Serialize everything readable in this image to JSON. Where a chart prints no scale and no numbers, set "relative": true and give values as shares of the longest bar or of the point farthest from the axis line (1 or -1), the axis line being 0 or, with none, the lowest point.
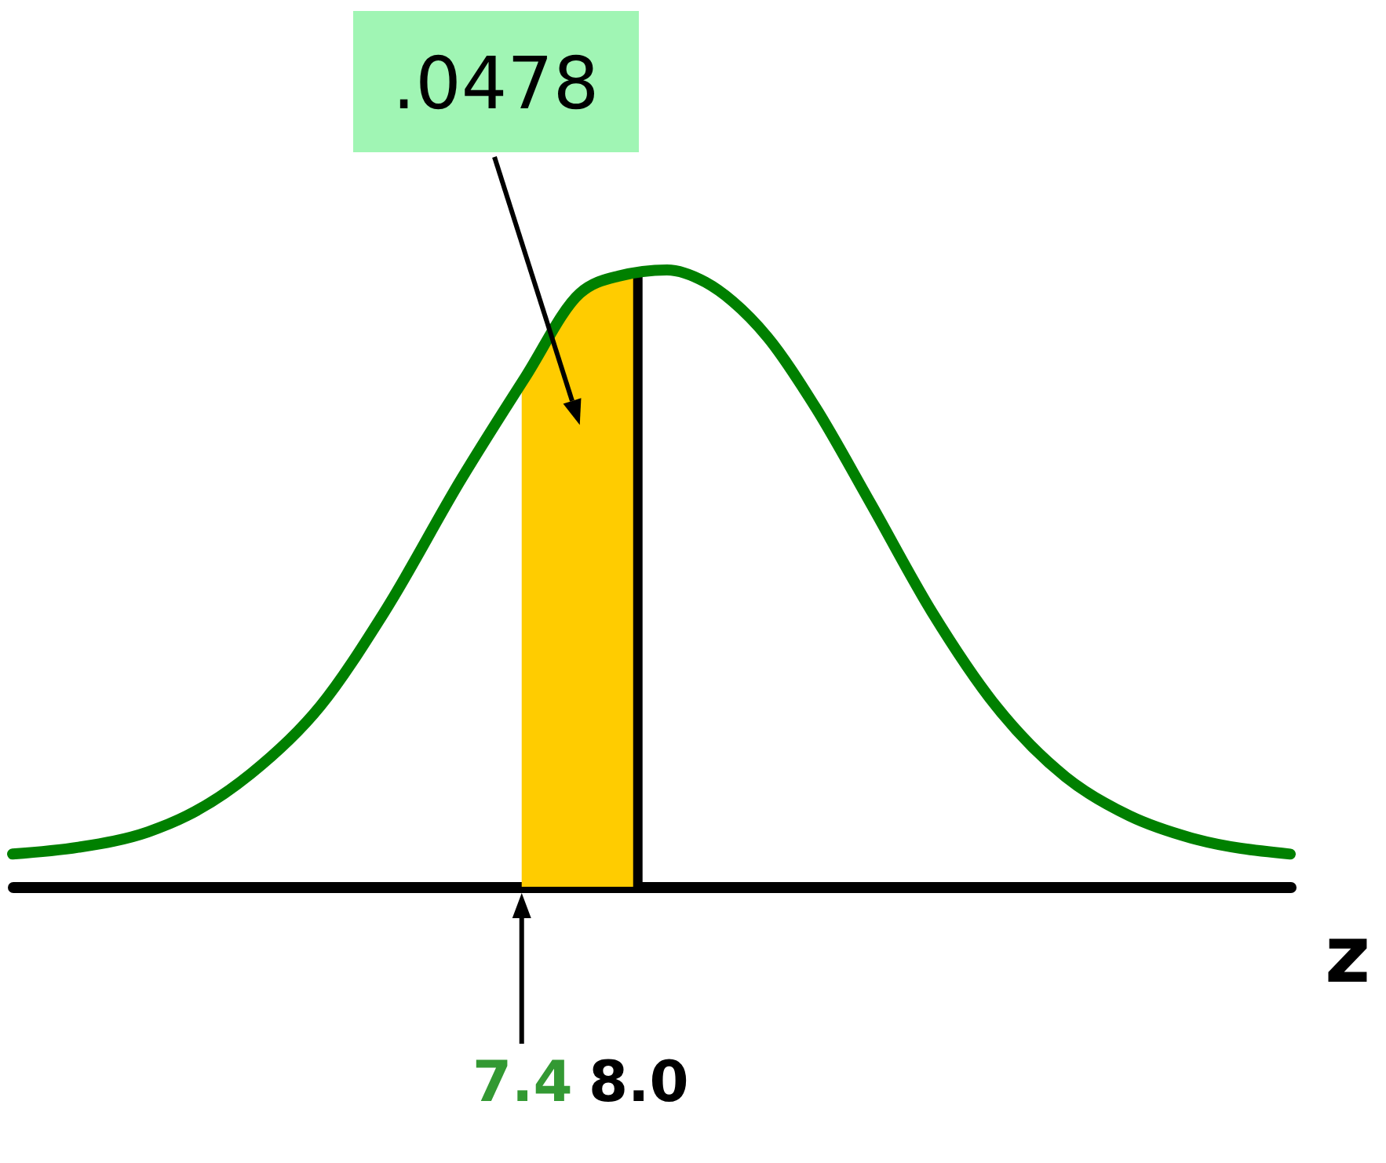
{
  "chart_data": {
    "type": "line",
    "relative": true,
    "xlabel": "z",
    "xlim": [
      4.77,
      11.37
    ],
    "xticks": [
      {
        "value": 7.4,
        "label": "7.4"
      },
      {
        "value": 8.0,
        "label": "8.0"
      }
    ],
    "series": [
      {
        "type": "area",
        "color": "#ffcc00",
        "x": [
          7.4,
          7.5,
          7.6,
          7.7,
          7.8,
          7.9,
          8.0
        ],
        "values": [
          0.81,
          0.865,
          0.916,
          0.96,
          0.972,
          0.99,
          0.99
        ]
      },
      {
        "color": "#008000",
        "x": [
          4.77,
          5.11,
          5.47,
          5.67,
          6.0,
          6.36,
          6.69,
          7.09,
          7.42,
          7.7,
          7.9,
          8.15,
          8.35,
          8.49,
          8.67,
          8.92,
          9.2,
          9.52,
          9.85,
          10.21,
          10.54,
          10.86,
          11.37
        ],
        "values": [
          0.053,
          0.064,
          0.089,
          0.115,
          0.183,
          0.293,
          0.445,
          0.662,
          0.827,
          0.962,
          0.99,
          1,
          0.98,
          0.949,
          0.891,
          0.776,
          0.623,
          0.445,
          0.293,
          0.178,
          0.115,
          0.079,
          0.053
        ]
      }
    ],
    "ref_lines": [
      {
        "axis": "x",
        "value": 8.0,
        "color": "#000000"
      }
    ],
    "annotations": [
      ".0478"
    ]
  }
}
